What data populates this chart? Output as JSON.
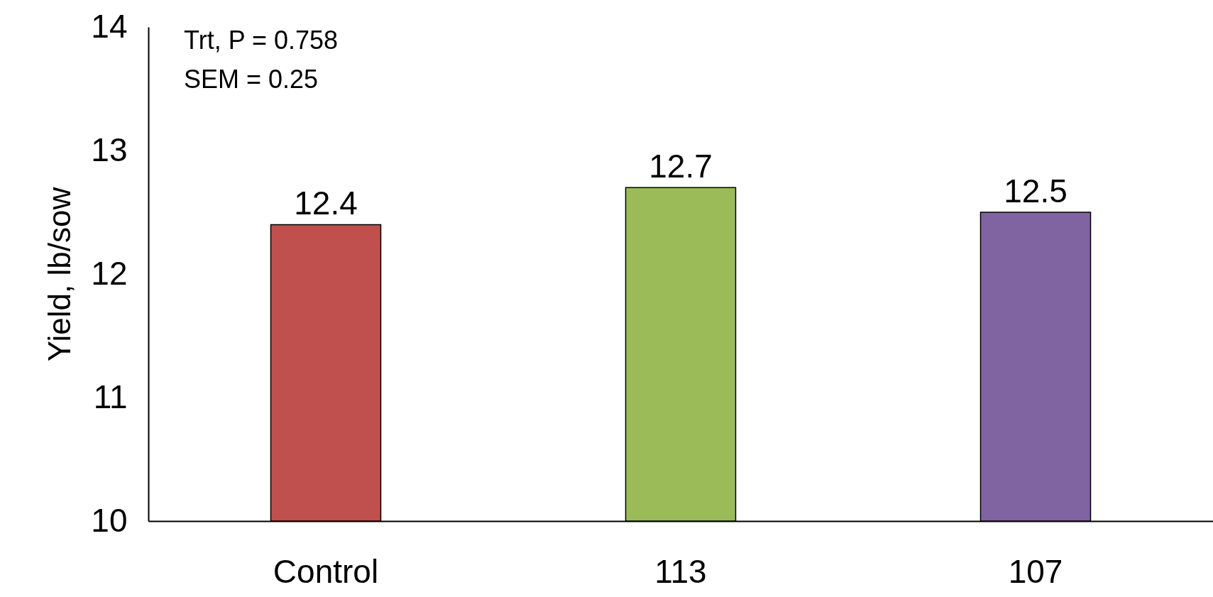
{
  "chart_data": {
    "type": "bar",
    "ylabel": "Yield, lb/sow",
    "categories": [
      "Control",
      "113",
      "107"
    ],
    "values": [
      12.4,
      12.7,
      12.5
    ],
    "colors": [
      "#c0504d",
      "#9bbb59",
      "#8064a2"
    ],
    "ylim": [
      10,
      14
    ],
    "yticks": [
      10,
      11,
      12,
      13,
      14
    ],
    "grid": false,
    "data_labels": true,
    "legend": false,
    "annotations": [
      "Trt, P = 0.758",
      "SEM = 0.25"
    ]
  }
}
